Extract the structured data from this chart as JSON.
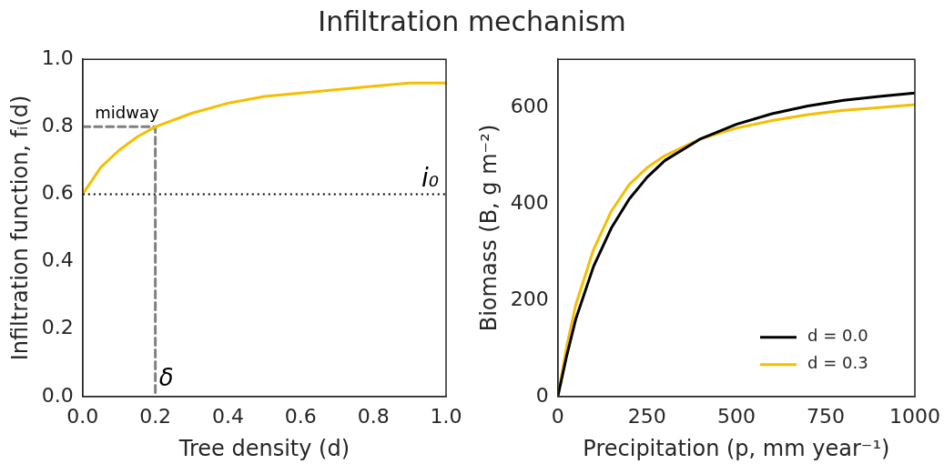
{
  "chart_data": [
    {
      "type": "line",
      "title": "Infiltration mechanism",
      "xlabel": "Tree density (d)",
      "ylabel": "Infiltration function, fᵢ(d)",
      "xlim": [
        0,
        1
      ],
      "ylim": [
        0,
        1
      ],
      "xticks": [
        {
          "value": 0,
          "label": "0.0"
        },
        0.2,
        0.4,
        0.6,
        0.8,
        {
          "value": 1,
          "label": "1.0"
        }
      ],
      "yticks": [
        {
          "value": 0,
          "label": "0.0"
        },
        0.2,
        0.4,
        0.6,
        0.8,
        {
          "value": 1,
          "label": "1.0"
        }
      ],
      "grid": false,
      "legend": false,
      "marker": "none",
      "series": [
        {
          "color": "#f5bf00",
          "x": [
            0,
            0.05,
            0.1,
            0.15,
            0.2,
            0.3,
            0.4,
            0.5,
            0.6,
            0.7,
            0.8,
            0.9,
            1.0
          ],
          "values": [
            0.6,
            0.68,
            0.73,
            0.77,
            0.8,
            0.84,
            0.87,
            0.89,
            0.9,
            0.91,
            0.92,
            0.93,
            0.93
          ]
        },
        {
          "color": "#808080",
          "line_style": "dashed",
          "x": [
            0,
            0.2,
            0.2
          ],
          "values": [
            0.8,
            0.8,
            0
          ]
        }
      ],
      "ref_lines": [
        {
          "axis": "y",
          "value": 0.6,
          "label": "i₀",
          "color": "#000000",
          "line_style": "dotted"
        }
      ],
      "annotations": [
        {
          "text": "midway",
          "x": 0.2,
          "y": 0.8
        },
        {
          "text": "δ",
          "x": 0.2,
          "y": 0
        }
      ]
    },
    {
      "type": "line",
      "xlabel": "Precipitation (p, mm year⁻¹)",
      "ylabel": "Biomass (B, g m⁻²)",
      "xlim": [
        0,
        1000
      ],
      "ylim": [
        0,
        700
      ],
      "xticks": [
        0,
        250,
        500,
        750,
        1000
      ],
      "yticks": [
        0,
        200,
        400,
        600
      ],
      "grid": false,
      "legend": "bottom right",
      "marker": "none",
      "x": [
        0,
        25,
        50,
        100,
        150,
        200,
        250,
        300,
        400,
        500,
        600,
        700,
        800,
        900,
        1000
      ],
      "series": [
        {
          "name": "d = 0.0",
          "color": "#000000",
          "values": [
            0,
            85,
            160,
            270,
            350,
            410,
            455,
            490,
            535,
            565,
            587,
            603,
            615,
            623,
            630
          ]
        },
        {
          "name": "d = 0.3",
          "color": "#f5bf00",
          "values": [
            0,
            105,
            190,
            305,
            385,
            440,
            475,
            500,
            535,
            557,
            573,
            585,
            594,
            600,
            606
          ]
        }
      ]
    }
  ]
}
